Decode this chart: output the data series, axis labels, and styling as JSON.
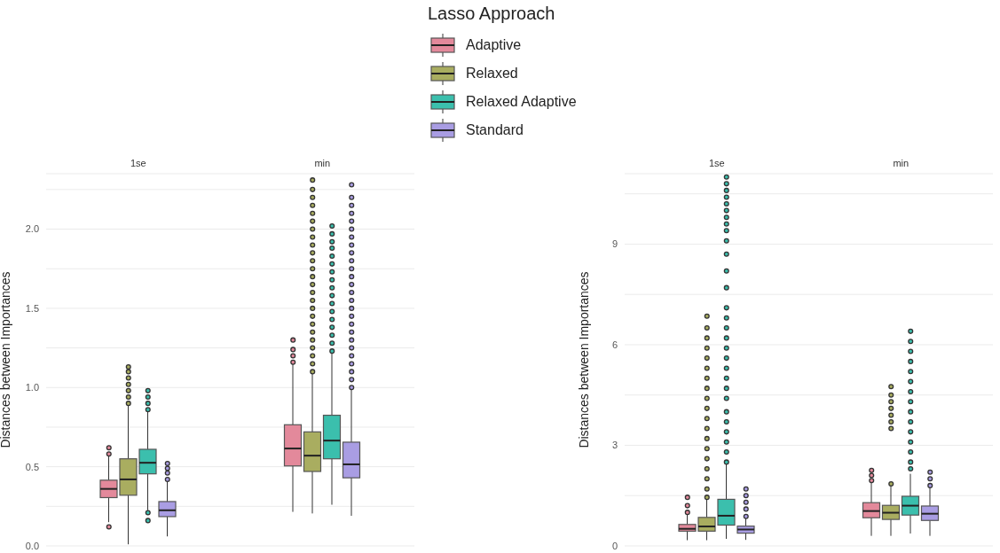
{
  "chart_data": [
    {
      "type": "box",
      "categories": [
        "1se",
        "min"
      ],
      "ylabel": "Distances between Importances",
      "legend_title": "Lasso Approach",
      "legend": "top",
      "grid": "y",
      "ylim": [
        0,
        2.35
      ],
      "yticks": [
        {
          "value": 0,
          "label": "0.0"
        },
        {
          "value": 0.25,
          "label": null
        },
        0.5,
        {
          "value": 0.75,
          "label": null
        },
        {
          "value": 1,
          "label": "1.0"
        },
        {
          "value": 1.25,
          "label": null
        },
        1.5,
        {
          "value": 1.75,
          "label": null
        },
        {
          "value": 2,
          "label": "2.0"
        },
        {
          "value": 2.25,
          "label": null
        }
      ],
      "series": [
        {
          "name": "Adaptive",
          "color": "#e3899b",
          "boxes": [
            {
              "low": 0.15,
              "q1": 0.305,
              "median": 0.36,
              "q3": 0.415,
              "high": 0.57,
              "outliers": [
                0.12,
                0.58,
                0.62
              ]
            },
            {
              "low": 0.215,
              "q1": 0.505,
              "median": 0.615,
              "q3": 0.765,
              "high": 1.15,
              "outliers": [
                1.16,
                1.2,
                1.24,
                1.3
              ]
            }
          ]
        },
        {
          "name": "Relaxed",
          "color": "#a9ad60",
          "boxes": [
            {
              "low": 0.01,
              "q1": 0.32,
              "median": 0.42,
              "q3": 0.55,
              "high": 0.89,
              "outliers": [
                0.9,
                0.94,
                0.98,
                1.02,
                1.06,
                1.1,
                1.13
              ]
            },
            {
              "low": 0.205,
              "q1": 0.47,
              "median": 0.57,
              "q3": 0.72,
              "high": 1.09,
              "outliers": [
                1.1,
                1.15,
                1.2,
                1.25,
                1.3,
                1.35,
                1.4,
                1.45,
                1.5,
                1.55,
                1.6,
                1.65,
                1.7,
                1.75,
                1.8,
                1.85,
                1.9,
                1.95,
                2.0,
                2.05,
                2.1,
                2.15,
                2.2,
                2.25,
                2.31
              ]
            }
          ]
        },
        {
          "name": "Relaxed Adaptive",
          "color": "#3bbfad",
          "boxes": [
            {
              "low": 0.225,
              "q1": 0.455,
              "median": 0.525,
              "q3": 0.61,
              "high": 0.845,
              "outliers": [
                0.16,
                0.21,
                0.86,
                0.9,
                0.94,
                0.98
              ]
            },
            {
              "low": 0.26,
              "q1": 0.55,
              "median": 0.665,
              "q3": 0.825,
              "high": 1.22,
              "outliers": [
                1.23,
                1.28,
                1.33,
                1.38,
                1.43,
                1.48,
                1.53,
                1.58,
                1.63,
                1.68,
                1.73,
                1.78,
                1.83,
                1.88,
                1.92,
                1.97,
                2.02
              ]
            }
          ]
        },
        {
          "name": "Standard",
          "color": "#a99de3",
          "boxes": [
            {
              "low": 0.06,
              "q1": 0.185,
              "median": 0.225,
              "q3": 0.28,
              "high": 0.41,
              "outliers": [
                0.42,
                0.46,
                0.49,
                0.52
              ]
            },
            {
              "low": 0.19,
              "q1": 0.43,
              "median": 0.515,
              "q3": 0.655,
              "high": 0.99,
              "outliers": [
                1.0,
                1.05,
                1.1,
                1.15,
                1.2,
                1.25,
                1.3,
                1.35,
                1.4,
                1.45,
                1.5,
                1.55,
                1.6,
                1.65,
                1.7,
                1.75,
                1.8,
                1.85,
                1.9,
                1.95,
                2.0,
                2.05,
                2.1,
                2.15,
                2.2,
                2.28
              ]
            }
          ]
        }
      ]
    },
    {
      "type": "box",
      "categories": [
        "1se",
        "min"
      ],
      "ylabel": "Distances between Importances",
      "grid": "y",
      "ylim": [
        0,
        11.1
      ],
      "yticks": [
        0,
        {
          "value": 1.5,
          "label": null
        },
        3,
        {
          "value": 4.5,
          "label": null
        },
        6,
        {
          "value": 7.5,
          "label": null
        },
        9,
        {
          "value": 10.5,
          "label": null
        }
      ],
      "series": [
        {
          "color": "#e3899b",
          "boxes": [
            {
              "low": 0.17,
              "q1": 0.44,
              "median": 0.51,
              "q3": 0.64,
              "high": 0.99,
              "outliers": [
                1.0,
                1.2,
                1.45
              ]
            },
            {
              "low": 0.3,
              "q1": 0.84,
              "median": 1.04,
              "q3": 1.29,
              "high": 1.9,
              "outliers": [
                1.95,
                2.1,
                2.25
              ]
            }
          ]
        },
        {
          "color": "#a9ad60",
          "boxes": [
            {
              "low": 0.17,
              "q1": 0.44,
              "median": 0.58,
              "q3": 0.85,
              "high": 1.4,
              "outliers": [
                1.45,
                1.7,
                2.0,
                2.3,
                2.6,
                2.9,
                3.2,
                3.5,
                3.8,
                4.1,
                4.4,
                4.7,
                5.0,
                5.3,
                5.6,
                5.9,
                6.2,
                6.5,
                6.85
              ]
            },
            {
              "low": 0.3,
              "q1": 0.79,
              "median": 0.99,
              "q3": 1.21,
              "high": 1.8,
              "outliers": [
                1.85,
                3.5,
                3.7,
                3.9,
                4.1,
                4.3,
                4.5,
                4.75
              ]
            }
          ]
        },
        {
          "color": "#3bbfad",
          "boxes": [
            {
              "low": 0.21,
              "q1": 0.62,
              "median": 0.9,
              "q3": 1.39,
              "high": 2.45,
              "outliers": [
                2.5,
                2.8,
                3.1,
                3.4,
                3.7,
                4.0,
                4.4,
                4.7,
                5.0,
                5.3,
                5.6,
                5.9,
                6.2,
                6.5,
                6.8,
                7.1,
                7.7,
                8.2,
                8.7,
                9.1,
                9.4,
                9.6,
                9.8,
                10.0,
                10.2,
                10.4,
                10.6,
                10.8,
                11.0
              ]
            },
            {
              "low": 0.37,
              "q1": 0.92,
              "median": 1.2,
              "q3": 1.48,
              "high": 2.15,
              "outliers": [
                2.3,
                2.5,
                2.8,
                3.1,
                3.4,
                3.7,
                4.0,
                4.3,
                4.6,
                4.9,
                5.2,
                5.5,
                5.8,
                6.1,
                6.4
              ]
            }
          ]
        },
        {
          "color": "#a99de3",
          "boxes": [
            {
              "low": 0.18,
              "q1": 0.38,
              "median": 0.49,
              "q3": 0.59,
              "high": 0.84,
              "outliers": [
                0.88,
                1.1,
                1.3,
                1.5,
                1.7
              ]
            },
            {
              "low": 0.3,
              "q1": 0.76,
              "median": 0.96,
              "q3": 1.19,
              "high": 1.75,
              "outliers": [
                1.8,
                2.0,
                2.2
              ]
            }
          ]
        }
      ]
    }
  ]
}
